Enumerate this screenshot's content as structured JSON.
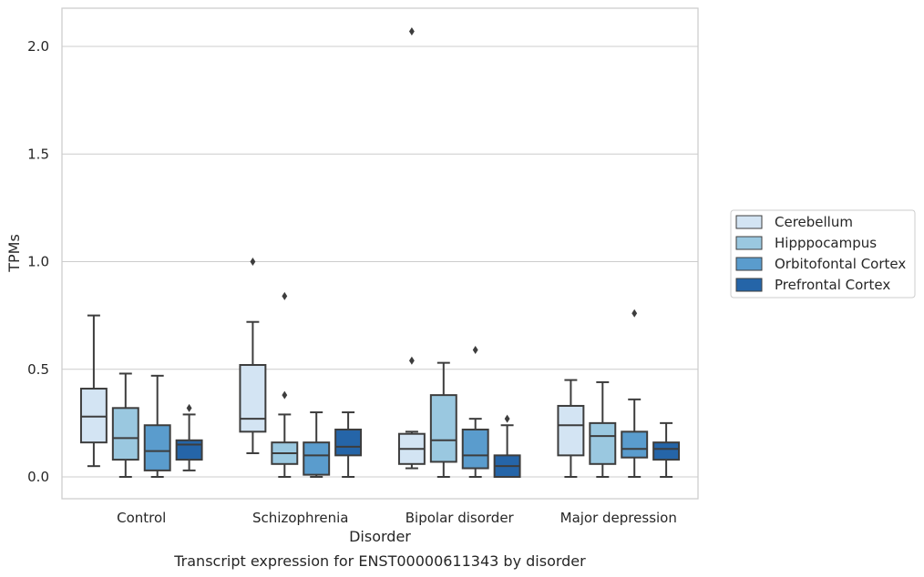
{
  "chart_data": {
    "type": "box",
    "xlabel": "Disorder",
    "ylabel": "TPMs",
    "caption": "Transcript expression for ENST00000611343 by disorder",
    "ylim": [
      -0.1,
      2.18
    ],
    "yticks": [
      0.0,
      0.5,
      1.0,
      1.5,
      2.0
    ],
    "ytick_labels": [
      "0.0",
      "0.5",
      "1.0",
      "1.5",
      "2.0"
    ],
    "grid": "horizontal",
    "legend_position": "right",
    "categories": [
      "Control",
      "Schizophrenia",
      "Bipolar disorder",
      "Major depression"
    ],
    "series": [
      {
        "name": "Cerebellum",
        "color": "#d3e4f3",
        "boxes": [
          {
            "whislo": 0.05,
            "q1": 0.16,
            "med": 0.28,
            "q3": 0.41,
            "whishi": 0.75,
            "fliers": []
          },
          {
            "whislo": 0.11,
            "q1": 0.21,
            "med": 0.27,
            "q3": 0.52,
            "whishi": 0.72,
            "fliers": [
              1.0
            ]
          },
          {
            "whislo": 0.04,
            "q1": 0.06,
            "med": 0.13,
            "q3": 0.2,
            "whishi": 0.21,
            "fliers": [
              0.54,
              2.07
            ]
          },
          {
            "whislo": 0.0,
            "q1": 0.1,
            "med": 0.24,
            "q3": 0.33,
            "whishi": 0.45,
            "fliers": []
          }
        ]
      },
      {
        "name": "Hipppocampus",
        "color": "#9ac8e0",
        "boxes": [
          {
            "whislo": 0.0,
            "q1": 0.08,
            "med": 0.18,
            "q3": 0.32,
            "whishi": 0.48,
            "fliers": []
          },
          {
            "whislo": 0.0,
            "q1": 0.06,
            "med": 0.11,
            "q3": 0.16,
            "whishi": 0.29,
            "fliers": [
              0.38,
              0.84
            ]
          },
          {
            "whislo": 0.0,
            "q1": 0.07,
            "med": 0.17,
            "q3": 0.38,
            "whishi": 0.53,
            "fliers": []
          },
          {
            "whislo": 0.0,
            "q1": 0.06,
            "med": 0.19,
            "q3": 0.25,
            "whishi": 0.44,
            "fliers": []
          }
        ]
      },
      {
        "name": "Orbitofontal Cortex",
        "color": "#5a9ccd",
        "boxes": [
          {
            "whislo": 0.0,
            "q1": 0.03,
            "med": 0.12,
            "q3": 0.24,
            "whishi": 0.47,
            "fliers": []
          },
          {
            "whislo": 0.0,
            "q1": 0.01,
            "med": 0.1,
            "q3": 0.16,
            "whishi": 0.3,
            "fliers": []
          },
          {
            "whislo": 0.0,
            "q1": 0.04,
            "med": 0.1,
            "q3": 0.22,
            "whishi": 0.27,
            "fliers": [
              0.59
            ]
          },
          {
            "whislo": 0.0,
            "q1": 0.09,
            "med": 0.13,
            "q3": 0.21,
            "whishi": 0.36,
            "fliers": [
              0.76
            ]
          }
        ]
      },
      {
        "name": "Prefrontal Cortex",
        "color": "#2565a8",
        "boxes": [
          {
            "whislo": 0.03,
            "q1": 0.08,
            "med": 0.15,
            "q3": 0.17,
            "whishi": 0.29,
            "fliers": [
              0.32
            ]
          },
          {
            "whislo": 0.0,
            "q1": 0.1,
            "med": 0.14,
            "q3": 0.22,
            "whishi": 0.3,
            "fliers": []
          },
          {
            "whislo": 0.0,
            "q1": 0.0,
            "med": 0.05,
            "q3": 0.1,
            "whishi": 0.24,
            "fliers": [
              0.27
            ]
          },
          {
            "whislo": 0.0,
            "q1": 0.08,
            "med": 0.13,
            "q3": 0.16,
            "whishi": 0.25,
            "fliers": []
          }
        ]
      }
    ]
  }
}
